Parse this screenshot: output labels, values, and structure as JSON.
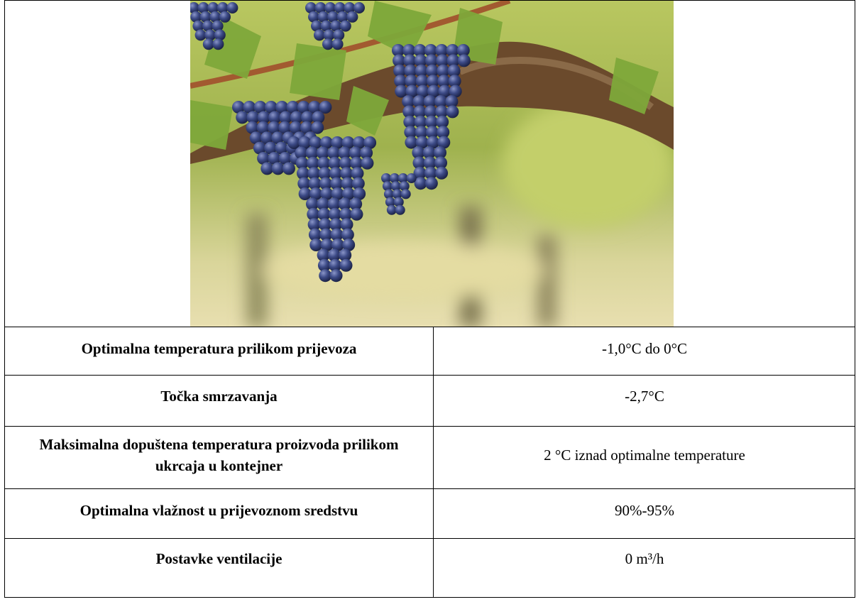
{
  "table": {
    "rows": [
      [
        "Optimalna temperatura prilikom prijevoza",
        "-1,0°C do 0°C"
      ],
      [
        "Točka smrzavanja",
        "-2,7°C"
      ],
      [
        "Maksimalna dopuštena temperatura proizvoda prilikom ukrcaja u kontejner",
        "2 °C iznad optimalne temperature"
      ],
      [
        "Optimalna vlažnost u prijevoznom sredstvu",
        "90%-95%"
      ],
      [
        "Postavke ventilacije",
        "0 m³/h"
      ]
    ]
  }
}
